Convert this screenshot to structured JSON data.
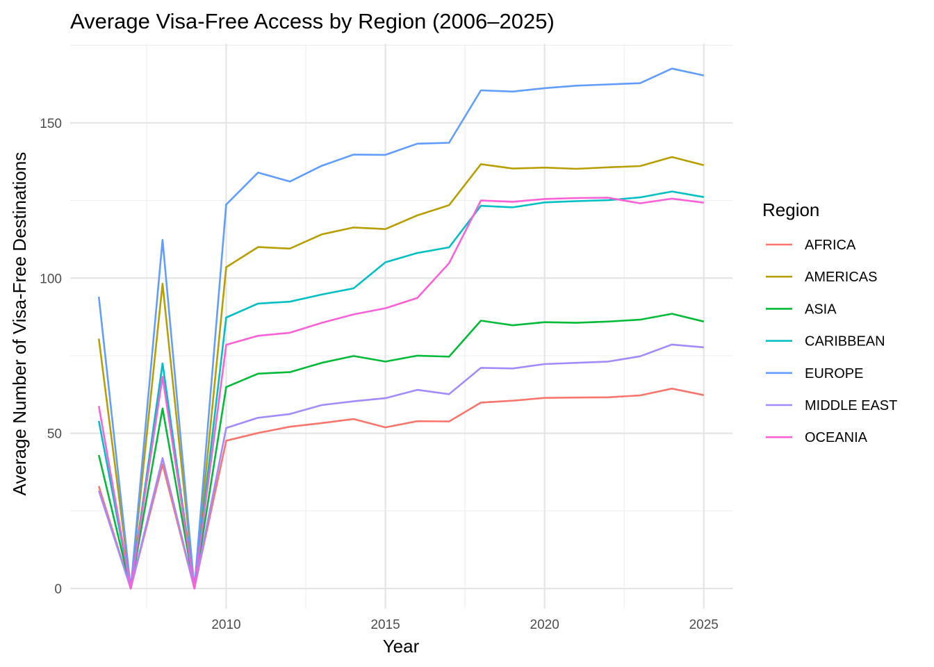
{
  "chart_data": {
    "type": "line",
    "title": "Average Visa-Free Access by Region (2006–2025)",
    "xlabel": "Year",
    "ylabel": "Average Number of Visa-Free Destinations",
    "x": [
      2006,
      2007,
      2008,
      2009,
      2010,
      2011,
      2012,
      2013,
      2014,
      2015,
      2016,
      2017,
      2018,
      2019,
      2020,
      2021,
      2022,
      2023,
      2024,
      2025
    ],
    "xlim": [
      2005.1,
      2025.9
    ],
    "ylim": [
      -6.5,
      175.5
    ],
    "xticks": [
      2010,
      2015,
      2020,
      2025
    ],
    "yticks": [
      0,
      50,
      100,
      150
    ],
    "grid": true,
    "legend": {
      "title": "Region",
      "position": "right"
    },
    "series": [
      {
        "name": "AFRICA",
        "color": "#F8766D",
        "values": [
          33,
          0,
          40,
          0,
          47.6,
          50.1,
          52.1,
          53.3,
          54.6,
          51.9,
          53.9,
          53.8,
          59.9,
          60.5,
          61.4,
          61.5,
          61.6,
          62.2,
          64.4,
          62.3
        ]
      },
      {
        "name": "AMERICAS",
        "color": "#B79F00",
        "values": [
          80.5,
          0,
          98.2,
          0,
          103.5,
          110,
          109.5,
          114.1,
          116.3,
          115.8,
          120.2,
          123.5,
          136.7,
          135.3,
          135.6,
          135.2,
          135.7,
          136.1,
          139,
          136.4
        ]
      },
      {
        "name": "ASIA",
        "color": "#00BA38",
        "values": [
          43,
          0,
          58,
          0,
          64.9,
          69.2,
          69.7,
          72.7,
          74.9,
          73.1,
          75,
          74.7,
          86.3,
          84.8,
          85.8,
          85.6,
          86,
          86.6,
          88.5,
          86
        ]
      },
      {
        "name": "CARIBBEAN",
        "color": "#00BFC4",
        "values": [
          54,
          0,
          72.5,
          0,
          87.3,
          91.8,
          92.4,
          94.7,
          96.7,
          105.1,
          108.1,
          109.9,
          123.3,
          122.8,
          124.4,
          124.8,
          125.1,
          126,
          127.9,
          126.1
        ]
      },
      {
        "name": "EUROPE",
        "color": "#619CFF",
        "values": [
          94,
          0,
          112.3,
          0,
          123.7,
          134,
          131.1,
          136.2,
          139.8,
          139.7,
          143.3,
          143.6,
          160.5,
          160.1,
          161.2,
          162,
          162.4,
          162.8,
          167.5,
          165.3
        ]
      },
      {
        "name": "MIDDLE EAST",
        "color": "#A58AFF",
        "values": [
          31.5,
          0,
          42,
          0,
          51.7,
          55,
          56.2,
          59.1,
          60.3,
          61.3,
          64,
          62.6,
          71.1,
          70.9,
          72.3,
          72.7,
          73.1,
          74.8,
          78.6,
          77.7
        ]
      },
      {
        "name": "OCEANIA",
        "color": "#FB61D7",
        "values": [
          58.8,
          0,
          68.2,
          0,
          78.5,
          81.4,
          82.4,
          85.6,
          88.3,
          90.3,
          93.6,
          104.8,
          125,
          124.6,
          125.5,
          125.8,
          125.9,
          124.1,
          125.6,
          124.3
        ]
      }
    ]
  }
}
